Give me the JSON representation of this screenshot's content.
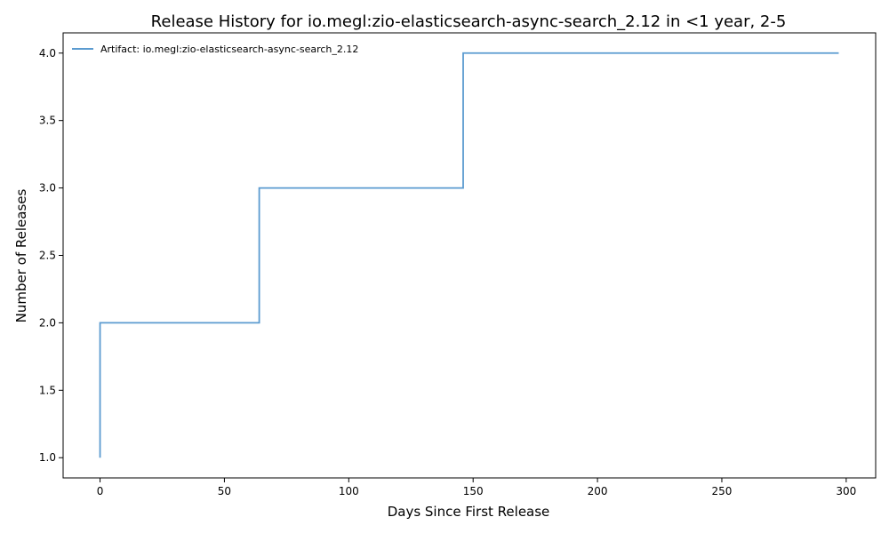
{
  "chart_data": {
    "type": "line",
    "step": "post",
    "title": "Release History for io.megl:zio-elasticsearch-async-search_2.12 in <1 year, 2-5",
    "xlabel": "Days Since First Release",
    "ylabel": "Number of Releases",
    "xlim": [
      -14.85,
      311.85
    ],
    "ylim": [
      0.85,
      4.15
    ],
    "xticks": [
      0,
      50,
      100,
      150,
      200,
      250,
      300
    ],
    "yticks": [
      1.0,
      1.5,
      2.0,
      2.5,
      3.0,
      3.5,
      4.0
    ],
    "xtick_labels": [
      "0",
      "50",
      "100",
      "150",
      "200",
      "250",
      "300"
    ],
    "ytick_labels": [
      "1.0",
      "1.5",
      "2.0",
      "2.5",
      "3.0",
      "3.5",
      "4.0"
    ],
    "grid": false,
    "legend": "top-left",
    "series": [
      {
        "name": "Artifact: io.megl:zio-elasticsearch-async-search_2.12",
        "color": "#5b9bd0",
        "x": [
          0,
          0,
          64,
          146,
          297
        ],
        "y": [
          1,
          2,
          3,
          4,
          4
        ]
      }
    ]
  }
}
